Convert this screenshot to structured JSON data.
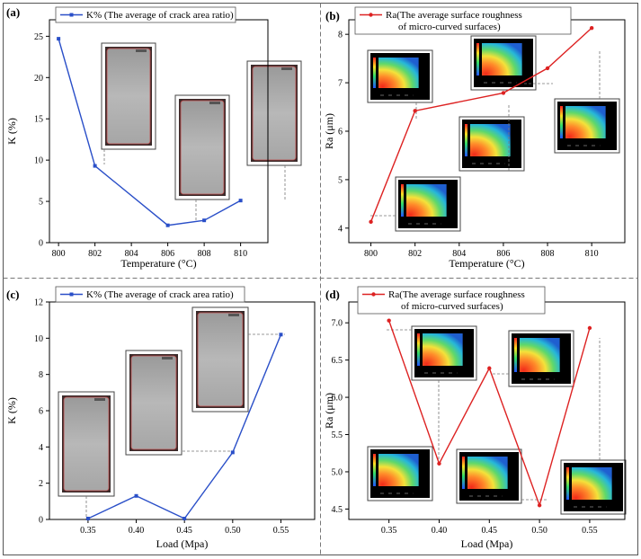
{
  "figure": {
    "panel_labels": [
      "(a)",
      "(b)",
      "(c)",
      "(d)"
    ]
  },
  "colors": {
    "series_k": "#2a4fc8",
    "series_ra": "#dd2222"
  },
  "chart_data": [
    {
      "type": "line",
      "panel": "(a)",
      "xlabel": "Temperature (°C)",
      "ylabel": "K (%)",
      "x": [
        800,
        802,
        806,
        808,
        810
      ],
      "xticks": [
        "800",
        "802",
        "804",
        "806",
        "808",
        "810"
      ],
      "xlim": [
        799.5,
        811.5
      ],
      "ylim": [
        0,
        27
      ],
      "yticks": [
        "0",
        "5",
        "10",
        "15",
        "20",
        "25"
      ],
      "series": [
        {
          "name": "K% (The average of crack area ratio)",
          "color": "#2a4fc8",
          "values": [
            24.7,
            9.3,
            2.1,
            2.7,
            5.1
          ]
        }
      ],
      "legend_lines": [
        "K% (The average of crack area ratio)"
      ],
      "legend": "top-left"
    },
    {
      "type": "line",
      "panel": "(b)",
      "xlabel": "Temperature (°C)",
      "ylabel": "Ra (μm)",
      "x": [
        800,
        802,
        806,
        808,
        810
      ],
      "xticks": [
        "800",
        "802",
        "804",
        "806",
        "808",
        "810"
      ],
      "xlim": [
        799.0,
        811.5
      ],
      "ylim": [
        3.7,
        8.3
      ],
      "yticks": [
        "4",
        "5",
        "6",
        "7",
        "8"
      ],
      "series": [
        {
          "name": "Ra(The average surface roughness of micro-curved surfaces)",
          "color": "#dd2222",
          "values": [
            4.13,
            6.42,
            6.79,
            7.3,
            8.13
          ]
        }
      ],
      "legend_lines": [
        "Ra(The average surface roughness",
        "of micro-curved surfaces)"
      ],
      "legend": "top-left"
    },
    {
      "type": "line",
      "panel": "(c)",
      "xlabel": "Load (Mpa)",
      "ylabel": "K (%)",
      "x": [
        0.35,
        0.4,
        0.45,
        0.5,
        0.55
      ],
      "xticks": [
        "0.35",
        "0.40",
        "0.45",
        "0.50",
        "0.55"
      ],
      "xlim": [
        0.31,
        0.585
      ],
      "ylim": [
        0,
        12
      ],
      "yticks": [
        "0",
        "2",
        "4",
        "6",
        "8",
        "10",
        "12"
      ],
      "series": [
        {
          "name": "K% (The average of crack area ratio)",
          "color": "#2a4fc8",
          "values": [
            0.05,
            1.3,
            0.05,
            3.7,
            10.2
          ]
        }
      ],
      "legend_lines": [
        "K% (The average of crack area ratio)"
      ],
      "legend": "top-left"
    },
    {
      "type": "line",
      "panel": "(d)",
      "xlabel": "Load (Mpa)",
      "ylabel": "Ra (μm)",
      "x": [
        0.35,
        0.4,
        0.45,
        0.5,
        0.55
      ],
      "xticks": [
        "0.35",
        "0.40",
        "0.45",
        "0.50",
        "0.55"
      ],
      "xlim": [
        0.31,
        0.585
      ],
      "ylim": [
        4.36,
        7.28
      ],
      "yticks": [
        "4.5",
        "5.0",
        "5.5",
        "6.0",
        "6.5",
        "7.0"
      ],
      "series": [
        {
          "name": "Ra(The average surface roughness of micro-curved surfaces)",
          "color": "#dd2222",
          "values": [
            7.03,
            5.11,
            6.39,
            4.55,
            6.93
          ]
        }
      ],
      "legend_lines": [
        "Ra(The average surface roughness",
        "of micro-curved surfaces)"
      ],
      "legend": "top-left"
    }
  ]
}
